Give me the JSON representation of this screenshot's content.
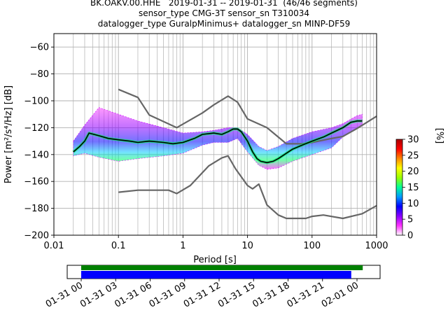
{
  "header": {
    "title_line1": "BK.OAKV.00.HHE   2019-01-31 -- 2019-01-31  (46/46 segments)",
    "title_line2": "sensor_type CMG-3T sensor_sn T310034",
    "title_line3": "datalogger_type GuralpMinimus+ datalogger_sn MINP-DF59"
  },
  "colors": {
    "noise_model": "#666666",
    "mean_curve": "#000000",
    "coverage_top": "#008000",
    "coverage_bottom": "#0000ff",
    "grid": "#b0b0b0"
  },
  "chart_data": [
    {
      "type": "heatmap",
      "title": "BK.OAKV.00.HHE   2019-01-31 -- 2019-01-31  (46/46 segments)",
      "xlabel": "Period [s]",
      "ylabel": "Power [m²/s⁴/Hz] [dB]",
      "x_scale": "log",
      "xlim": [
        0.01,
        1000
      ],
      "ylim": [
        -200,
        -50
      ],
      "x_ticks": [
        {
          "value": 0.01,
          "label": "0.01"
        },
        {
          "value": 0.1,
          "label": "0.1"
        },
        {
          "value": 1,
          "label": "1"
        },
        {
          "value": 10,
          "label": "10"
        },
        {
          "value": 100,
          "label": "100"
        },
        {
          "value": 1000,
          "label": "1000"
        }
      ],
      "y_ticks": [
        {
          "value": -60,
          "label": "−60"
        },
        {
          "value": -80,
          "label": "−80"
        },
        {
          "value": -100,
          "label": "−100"
        },
        {
          "value": -120,
          "label": "−120"
        },
        {
          "value": -140,
          "label": "−140"
        },
        {
          "value": -160,
          "label": "−160"
        },
        {
          "value": -180,
          "label": "−180"
        },
        {
          "value": -200,
          "label": "−200"
        }
      ],
      "grid": true,
      "colorbar": {
        "label": "[%]",
        "range": [
          0,
          30
        ],
        "ticks": [
          {
            "value": 0,
            "label": "0"
          },
          {
            "value": 5,
            "label": "5"
          },
          {
            "value": 10,
            "label": "10"
          },
          {
            "value": 15,
            "label": "15"
          },
          {
            "value": 20,
            "label": "20"
          },
          {
            "value": 25,
            "label": "25"
          },
          {
            "value": 30,
            "label": "30"
          }
        ],
        "colors": [
          "#ffffff",
          "#ff33ff",
          "#8800ff",
          "#0000ff",
          "#0099ff",
          "#00ff99",
          "#99ff00",
          "#ffff00",
          "#ff8800",
          "#ff0000",
          "#aa0000"
        ]
      },
      "series": [
        {
          "name": "mean",
          "x": [
            0.02,
            0.025,
            0.03,
            0.035,
            0.05,
            0.07,
            0.1,
            0.15,
            0.2,
            0.3,
            0.5,
            0.7,
            1,
            1.5,
            2,
            3,
            4,
            5,
            6,
            7,
            8,
            10,
            12,
            14,
            16,
            20,
            25,
            30,
            40,
            50,
            70,
            100,
            150,
            200,
            300,
            400,
            500,
            600
          ],
          "y": [
            -138,
            -134,
            -130,
            -124,
            -126,
            -128,
            -129,
            -130,
            -131,
            -130,
            -131,
            -132,
            -131,
            -128,
            -125,
            -124,
            -125,
            -123,
            -121,
            -121,
            -123,
            -130,
            -138,
            -143,
            -145,
            -146,
            -145,
            -143,
            -139,
            -136,
            -133,
            -130,
            -127,
            -124,
            -120,
            -116,
            -115,
            -115
          ]
        },
        {
          "name": "",
          "x": [
            0.1,
            0.2,
            0.3,
            0.8,
            2,
            3,
            5,
            7,
            10,
            20,
            40,
            70,
            100,
            200,
            300,
            500,
            1000
          ],
          "y": [
            -91.5,
            -97.5,
            -110.5,
            -120,
            -109,
            -103,
            -96.5,
            -101,
            -113.5,
            -120,
            -132,
            -132,
            -131,
            -128,
            -126.5,
            -120.5,
            -111.5
          ]
        },
        {
          "name": "",
          "x": [
            0.1,
            0.2,
            0.6,
            0.8,
            1.3,
            2.5,
            4,
            5,
            6.5,
            10,
            12,
            15,
            20,
            30,
            40,
            60,
            80,
            100,
            150,
            300,
            600,
            1000
          ],
          "y": [
            -168,
            -166.5,
            -166.5,
            -169,
            -163,
            -148.5,
            -142.5,
            -141,
            -150.5,
            -163,
            -165.5,
            -162,
            -177.5,
            -185,
            -187.5,
            -187.5,
            -187.5,
            -186,
            -185,
            -187.5,
            -184,
            -178
          ]
        }
      ],
      "density_bands": [
        {
          "x": [
            0.02,
            0.03,
            0.05,
            0.1,
            0.2,
            0.5,
            1,
            2,
            3,
            5,
            7,
            10,
            15,
            20,
            30,
            50,
            100,
            200,
            300,
            500,
            600
          ],
          "upper": [
            -130,
            -118,
            -105,
            -110,
            -115,
            -120,
            -124,
            -123,
            -122,
            -120,
            -120,
            -125,
            -134,
            -137,
            -134,
            -128,
            -123,
            -120,
            -117,
            -111,
            -110
          ],
          "lower": [
            -141,
            -139,
            -142,
            -145,
            -143,
            -141,
            -139,
            -133,
            -131,
            -131,
            -128,
            -138,
            -148,
            -151,
            -150,
            -145,
            -140,
            -135,
            -127,
            -120,
            -119
          ]
        }
      ]
    },
    {
      "type": "bar",
      "title": "",
      "x_scale": "time",
      "x_ticks": [
        "01-31 00",
        "01-31 03",
        "01-31 06",
        "01-31 09",
        "01-31 12",
        "01-31 15",
        "01-31 18",
        "01-31 21",
        "02-01 00"
      ],
      "series": [
        {
          "name": "",
          "start": "01-31 00:00",
          "end": "01-31 24:30"
        },
        {
          "name": "",
          "start": "01-31 00:00",
          "end": "01-31 23:30"
        }
      ]
    }
  ]
}
